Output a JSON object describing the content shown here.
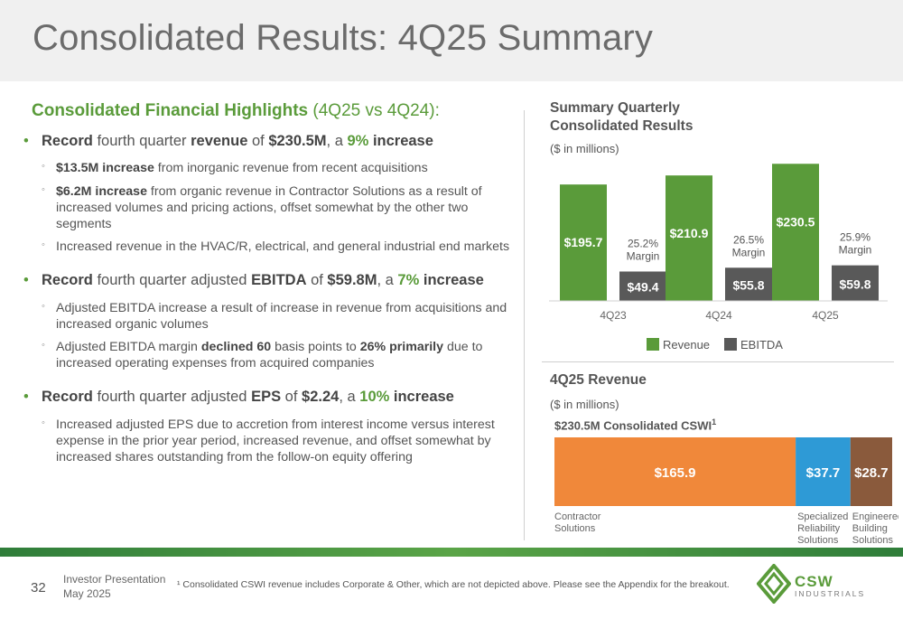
{
  "slide": {
    "title": "Consolidated Results: 4Q25 Summary",
    "page_number": "32",
    "presentation": "Investor Presentation",
    "date": "May 2025",
    "footnote": "¹ Consolidated CSWI revenue includes Corporate & Other, which are not depicted above.  Please see the Appendix for the breakout.",
    "logo_text": "CSW",
    "logo_subtext": "INDUSTRIALS"
  },
  "highlights": {
    "heading_bold": "Consolidated Financial Highlights",
    "heading_rest": " (4Q25 vs 4Q24):",
    "b1": {
      "p1": "Record",
      "p2": " fourth quarter ",
      "p3": "revenue",
      "p4": " of ",
      "p5": "$230.5M",
      "p6": ", a ",
      "p7": "9%",
      "p8": " ",
      "p9": "increase",
      "s1_bold": "$13.5M increase",
      "s1_rest": " from inorganic revenue from recent acquisitions",
      "s2_bold": "$6.2M increase",
      "s2_rest": " from organic revenue in Contractor Solutions as a result of increased volumes and pricing actions, offset somewhat by the other two segments",
      "s3": "Increased revenue in the HVAC/R, electrical, and general industrial end markets"
    },
    "b2": {
      "p1": "Record",
      "p2": " fourth quarter adjusted ",
      "p3": "EBITDA",
      "p4": " of ",
      "p5": "$59.8M",
      "p6": ", a ",
      "p7": "7%",
      "p8": " ",
      "p9": "increase",
      "s1": "Adjusted EBITDA increase a result of increase in revenue from acquisitions and increased organic volumes",
      "s2_a": "Adjusted EBITDA margin ",
      "s2_b": "declined 60",
      "s2_c": " basis points to ",
      "s2_d": "26% primarily",
      "s2_e": " due to increased operating expenses from acquired companies"
    },
    "b3": {
      "p1": "Record",
      "p2": " fourth quarter adjusted ",
      "p3": "EPS",
      "p4": " of ",
      "p5": "$2.24",
      "p6": ", a ",
      "p7": "10%",
      "p8": " ",
      "p9": "increase",
      "s1": "Increased adjusted EPS due to accretion from interest income versus interest expense in the prior year period, increased revenue, and offset somewhat by increased shares outstanding from the follow-on equity offering"
    }
  },
  "chart_data": [
    {
      "type": "bar",
      "title": "Summary Quarterly Consolidated Results",
      "units": "($ in millions)",
      "categories": [
        "4Q23",
        "4Q24",
        "4Q25"
      ],
      "series": [
        {
          "name": "Revenue",
          "values": [
            195.7,
            210.9,
            230.5
          ],
          "labels": [
            "$195.7",
            "$210.9",
            "$230.5"
          ],
          "color": "#5a9b3a"
        },
        {
          "name": "EBITDA",
          "values": [
            49.4,
            55.8,
            59.8
          ],
          "labels": [
            "$49.4",
            "$55.8",
            "$59.8"
          ],
          "color": "#595959"
        }
      ],
      "margins": [
        "25.2%",
        "26.5%",
        "25.9%"
      ],
      "margin_word": "Margin",
      "legend": "bottom",
      "ylim": [
        0,
        240
      ]
    },
    {
      "type": "bar",
      "orientation": "horizontal-stacked",
      "title": "4Q25 Revenue",
      "units": "($ in millions)",
      "bar_label": "$230.5M Consolidated CSWI",
      "bar_label_sup": "1",
      "segments": [
        {
          "name": "Contractor Solutions",
          "name_lines": [
            "Contractor",
            "Solutions"
          ],
          "value": 165.9,
          "label": "$165.9",
          "color": "#f0883a"
        },
        {
          "name": "Specialized Reliability Solutions",
          "name_lines": [
            "Specialized",
            "Reliability",
            "Solutions"
          ],
          "value": 37.7,
          "label": "$37.7",
          "color": "#2e9ad6"
        },
        {
          "name": "Engineered Building Solutions",
          "name_lines": [
            "Engineered",
            "Building",
            "Solutions"
          ],
          "value": 28.7,
          "label": "$28.7",
          "color": "#8a5a3c"
        }
      ]
    }
  ]
}
